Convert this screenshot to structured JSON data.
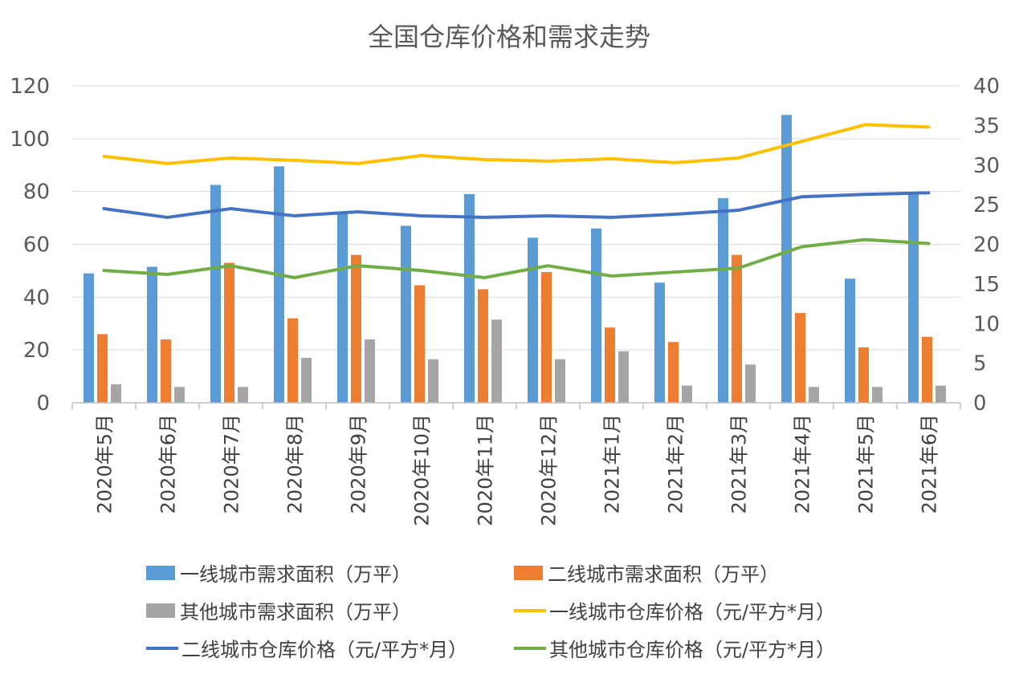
{
  "chart_data": {
    "type": "bar",
    "title": "全国仓库价格和需求走势",
    "categories": [
      "2020年5月",
      "2020年6月",
      "2020年7月",
      "2020年8月",
      "2020年9月",
      "2020年10月",
      "2020年11月",
      "2020年12月",
      "2021年1月",
      "2021年2月",
      "2021年3月",
      "2021年4月",
      "2021年5月",
      "2021年6月"
    ],
    "y_left": {
      "range": [
        0,
        120
      ],
      "ticks": [
        0,
        20,
        40,
        60,
        80,
        100,
        120
      ]
    },
    "y_right": {
      "range": [
        0,
        40
      ],
      "ticks": [
        0,
        5,
        10,
        15,
        20,
        25,
        30,
        35,
        40
      ]
    },
    "grid": true,
    "legend_position": "bottom",
    "bar_series": [
      {
        "name": "一线城市需求面积（万平）",
        "color": "#5B9BD5",
        "axis": "left",
        "values": [
          49,
          51.5,
          82.5,
          89.5,
          71.5,
          67,
          79,
          62.5,
          66,
          45.5,
          77.5,
          109,
          47,
          79
        ]
      },
      {
        "name": "二线城市需求面积（万平）",
        "color": "#ED7D31",
        "axis": "left",
        "values": [
          26,
          24,
          53,
          32,
          56,
          44.5,
          43,
          49.5,
          28.5,
          23,
          56,
          34,
          21,
          25
        ]
      },
      {
        "name": "其他城市需求面积（万平）",
        "color": "#A5A5A5",
        "axis": "left",
        "values": [
          7,
          6,
          6,
          17,
          24,
          16.5,
          31.5,
          16.5,
          19.5,
          6.5,
          14.5,
          6,
          6,
          6.5
        ]
      }
    ],
    "line_series": [
      {
        "name": "一线城市仓库价格（元/平方*月）",
        "color": "#FFC000",
        "axis": "right",
        "values": [
          31.1,
          30.2,
          30.9,
          30.6,
          30.2,
          31.2,
          30.7,
          30.5,
          30.8,
          30.3,
          30.9,
          33.0,
          35.1,
          34.8
        ]
      },
      {
        "name": "二线城市仓库价格（元/平方*月）",
        "color": "#4472C4",
        "axis": "right",
        "values": [
          24.5,
          23.4,
          24.5,
          23.6,
          24.1,
          23.6,
          23.4,
          23.6,
          23.4,
          23.8,
          24.3,
          26.0,
          26.3,
          26.5
        ]
      },
      {
        "name": "其他城市仓库价格（元/平方*月）",
        "color": "#70AD47",
        "axis": "right",
        "values": [
          16.7,
          16.2,
          17.3,
          15.8,
          17.3,
          16.7,
          15.8,
          17.3,
          16.0,
          16.5,
          17.0,
          19.7,
          20.6,
          20.1
        ]
      }
    ]
  }
}
